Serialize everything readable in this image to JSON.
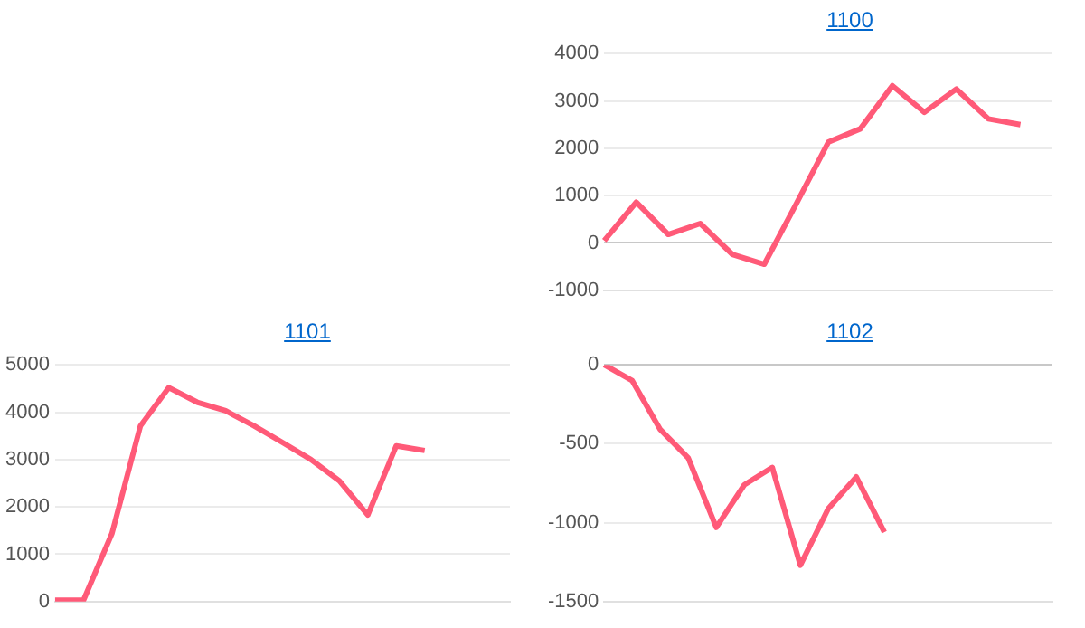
{
  "chart_data": [
    {
      "type": "line",
      "title": "1100",
      "categories": [
        null,
        null,
        null,
        null,
        null,
        null,
        null,
        null,
        null,
        null,
        null,
        null,
        null,
        null,
        null
      ],
      "values": [
        50,
        860,
        180,
        410,
        -240,
        -450,
        830,
        2130,
        2410,
        3320,
        2760,
        3250,
        2620,
        2500,
        null
      ],
      "color": "#ff5a78",
      "ylim": [
        -1000,
        4000
      ],
      "yticks": [
        -1000,
        0,
        1000,
        2000,
        3000,
        4000
      ],
      "grid": "y",
      "tick_labels": "y"
    },
    {
      "type": "line",
      "title": "1101",
      "categories": [
        null,
        null,
        null,
        null,
        null,
        null,
        null,
        null,
        null,
        null,
        null,
        null,
        null,
        null,
        null,
        null,
        null
      ],
      "values": [
        30,
        30,
        1440,
        3710,
        4520,
        4210,
        4030,
        3710,
        3360,
        3000,
        2550,
        1830,
        3290,
        3190,
        null,
        null,
        null
      ],
      "color": "#ff5a78",
      "ylim": [
        0,
        5000
      ],
      "yticks": [
        0,
        1000,
        2000,
        3000,
        4000,
        5000
      ],
      "grid": "y",
      "tick_labels": "y"
    },
    {
      "type": "line",
      "title": "1102",
      "categories": [
        null,
        null,
        null,
        null,
        null,
        null,
        null,
        null,
        null,
        null,
        null,
        null,
        null,
        null,
        null,
        null,
        null
      ],
      "values": [
        0,
        -100,
        -410,
        -590,
        -1030,
        -760,
        -650,
        -1270,
        -910,
        -710,
        -1060,
        null,
        null,
        null,
        null,
        null,
        null
      ],
      "color": "#ff5a78",
      "ylim": [
        -1500,
        0
      ],
      "yticks": [
        -1500,
        -1000,
        -500,
        0
      ],
      "grid": "y",
      "tick_labels": "y"
    }
  ]
}
